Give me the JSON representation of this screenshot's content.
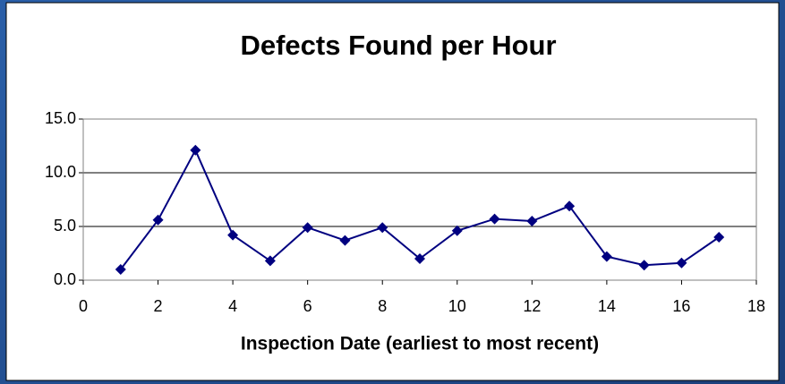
{
  "chart_data": {
    "type": "line",
    "title": "Defects Found per Hour",
    "x_label": "Inspection Date (earliest to most recent)",
    "x": [
      1,
      2,
      3,
      4,
      5,
      6,
      7,
      8,
      9,
      10,
      11,
      12,
      13,
      14,
      15,
      16,
      17
    ],
    "series": [
      {
        "color": "#000080",
        "values": [
          1.0,
          5.6,
          12.1,
          4.2,
          1.8,
          4.9,
          3.7,
          4.9,
          2.0,
          4.6,
          5.7,
          5.5,
          6.9,
          2.2,
          1.4,
          1.6,
          4.0
        ]
      }
    ],
    "xlim": [
      0,
      18
    ],
    "xticks": [
      0,
      2,
      4,
      6,
      8,
      10,
      12,
      14,
      16,
      18
    ],
    "ylim": [
      0,
      15
    ],
    "yticks": [
      {
        "value": 0,
        "label": "0.0"
      },
      {
        "value": 5,
        "label": "5.0"
      },
      {
        "value": 10,
        "label": "10.0"
      },
      {
        "value": 15,
        "label": "15.0"
      }
    ],
    "grid": true
  }
}
